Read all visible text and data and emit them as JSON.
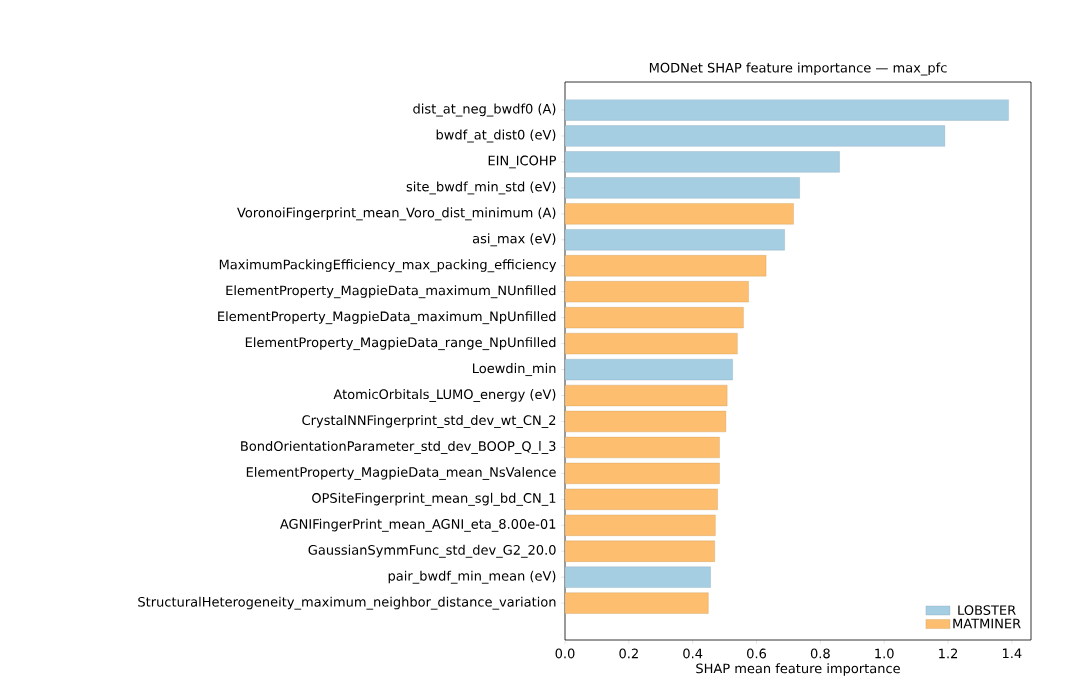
{
  "chart_data": {
    "type": "bar",
    "orientation": "horizontal",
    "stacked": true,
    "title": "MODNet SHAP feature importance — max_pfc",
    "xlabel": "SHAP mean feature importance",
    "categories": [
      "dist_at_neg_bwdf0 (A)",
      "bwdf_at_dist0 (eV)",
      "EIN_ICOHP",
      "site_bwdf_min_std (eV)",
      "VoronoiFingerprint_mean_Voro_dist_minimum (A)",
      "asi_max (eV)",
      "MaximumPackingEfficiency_max_packing_efficiency",
      "ElementProperty_MagpieData_maximum_NUnfilled",
      "ElementProperty_MagpieData_maximum_NpUnfilled",
      "ElementProperty_MagpieData_range_NpUnfilled",
      "Loewdin_min",
      "AtomicOrbitals_LUMO_energy (eV)",
      "CrystalNNFingerprint_std_dev_wt_CN_2",
      "BondOrientationParameter_std_dev_BOOP_Q_l_3",
      "ElementProperty_MagpieData_mean_NsValence",
      "OPSiteFingerprint_mean_sgl_bd_CN_1",
      "AGNIFingerPrint_mean_AGNI_eta_8.00e-01",
      "GaussianSymmFunc_std_dev_G2_20.0",
      "pair_bwdf_min_mean (eV)",
      "StructuralHeterogeneity_maximum_neighbor_distance_variation"
    ],
    "series": [
      {
        "name": "LOBSTER",
        "color": "#a6cee3",
        "values": [
          1.39,
          1.19,
          0.86,
          0.735,
          null,
          0.688,
          null,
          null,
          null,
          null,
          0.525,
          null,
          null,
          null,
          null,
          null,
          null,
          null,
          0.456,
          null
        ]
      },
      {
        "name": "MATMINER",
        "color": "#fdbf6f",
        "values": [
          null,
          null,
          null,
          null,
          0.716,
          null,
          0.63,
          0.575,
          0.559,
          0.54,
          null,
          0.508,
          0.504,
          0.484,
          0.484,
          0.478,
          0.471,
          0.469,
          null,
          0.449
        ]
      }
    ],
    "xlim": [
      0,
      1.46
    ],
    "xticks": [
      {
        "value": 0,
        "label": "0.0"
      },
      0.2,
      0.4,
      0.6,
      0.8,
      {
        "value": 1,
        "label": "1.0"
      },
      1.2,
      1.4
    ],
    "legend": "bottom right"
  }
}
